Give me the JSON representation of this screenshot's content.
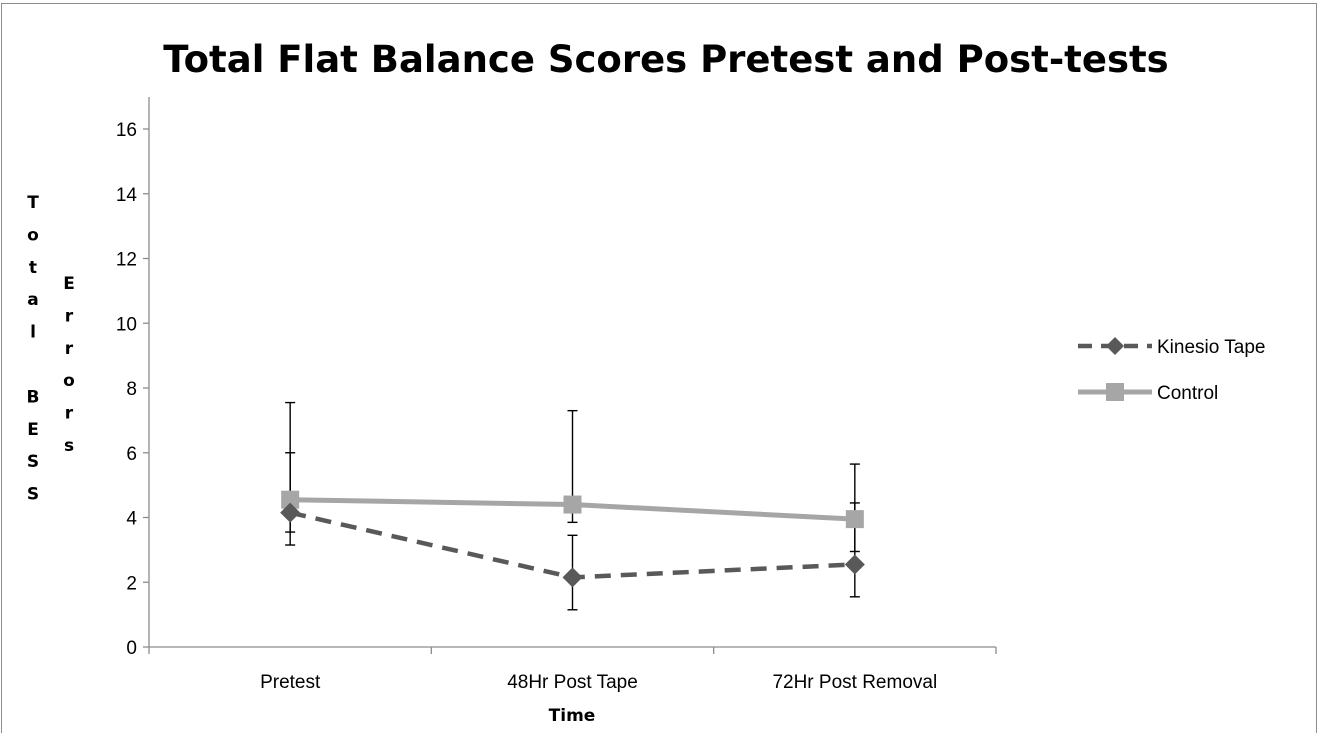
{
  "chart_data": {
    "type": "line",
    "title": "Total Flat Balance Scores Pretest and Post-tests",
    "xlabel": "Time",
    "ylabel_col1": [
      "T",
      "o",
      "t",
      "a",
      "l",
      "",
      "B",
      "E",
      "S",
      "S"
    ],
    "ylabel_col2": [
      "E",
      "r",
      "r",
      "o",
      "r",
      "s"
    ],
    "ylim": [
      0,
      16
    ],
    "yticks": [
      0,
      2,
      4,
      6,
      8,
      10,
      12,
      14,
      16
    ],
    "categories": [
      "Pretest",
      "48Hr Post Tape",
      "72Hr Post Removal"
    ],
    "grid": false,
    "legend_position": "right",
    "series": [
      {
        "name": "Kinesio Tape",
        "values": [
          4.15,
          2.15,
          2.55
        ],
        "error_low": [
          3.15,
          1.15,
          1.55
        ],
        "error_high": [
          6.0,
          3.45,
          4.45
        ],
        "color": "#595959",
        "dash": true,
        "marker": "diamond"
      },
      {
        "name": "Control",
        "values": [
          4.55,
          4.4,
          3.95
        ],
        "error_low": [
          3.55,
          3.85,
          2.95
        ],
        "error_high": [
          7.55,
          7.3,
          5.65
        ],
        "color": "#a6a6a6",
        "dash": false,
        "marker": "square"
      }
    ]
  }
}
